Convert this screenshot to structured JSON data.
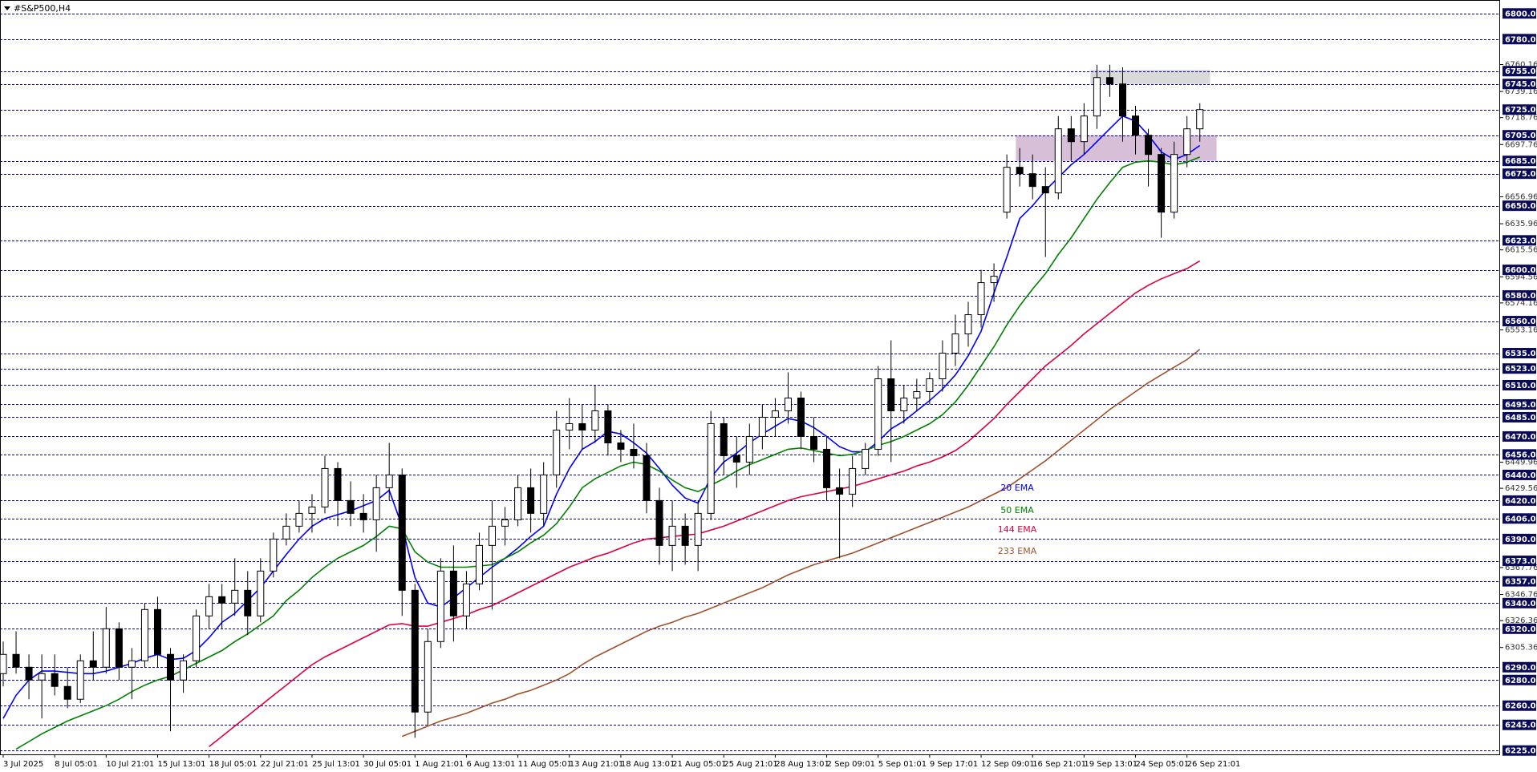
{
  "chart_data": {
    "type": "candlestick",
    "title": "#S&P500,H4",
    "categories": [
      "3 Jul 2025",
      null,
      null,
      null,
      "8 Jul 05:01",
      null,
      null,
      null,
      "10 Jul 21:01",
      null,
      null,
      null,
      "15 Jul 13:01",
      null,
      null,
      null,
      "18 Jul 05:01",
      null,
      null,
      null,
      "22 Jul 21:01",
      null,
      null,
      null,
      "25 Jul 13:01",
      null,
      null,
      null,
      "30 Jul 05:01",
      null,
      null,
      null,
      "1 Aug 21:01",
      null,
      null,
      null,
      "6 Aug 13:01",
      null,
      null,
      null,
      "11 Aug 05:01",
      null,
      null,
      null,
      "13 Aug 21:01",
      null,
      null,
      null,
      "18 Aug 13:01",
      null,
      null,
      null,
      "21 Aug 05:01",
      null,
      null,
      null,
      "25 Aug 21:01",
      null,
      null,
      null,
      "28 Aug 13:01",
      null,
      null,
      null,
      "2 Sep 09:01",
      null,
      null,
      null,
      "5 Sep 01:01",
      null,
      null,
      null,
      "9 Sep 17:01",
      null,
      null,
      null,
      "12 Sep 09:01",
      null,
      null,
      null,
      "16 Sep 21:01",
      null,
      null,
      null,
      "19 Sep 13:01",
      null,
      null,
      null,
      "24 Sep 05:01",
      null,
      null,
      null,
      "26 Sep 21:01",
      null
    ],
    "open": [
      6285,
      6300,
      6290,
      6280,
      6285,
      6275,
      6265,
      6295,
      6290,
      6320,
      6290,
      6295,
      6335,
      6300,
      6280,
      6295,
      6330,
      6345,
      6340,
      6350,
      6330,
      6365,
      6390,
      6400,
      6410,
      6415,
      6445,
      6420,
      6410,
      6405,
      6430,
      6440,
      6350,
      6255,
      6310,
      6365,
      6330,
      6355,
      6385,
      6400,
      6405,
      6430,
      6410,
      6440,
      6475,
      6480,
      6475,
      6490,
      6465,
      6460,
      6455,
      6420,
      6385,
      6400,
      6385,
      6410,
      6480,
      6455,
      6450,
      6470,
      6485,
      6490,
      6500,
      6470,
      6460,
      6430,
      6425,
      6445,
      6460,
      6515,
      6490,
      6500,
      6505,
      6515,
      6535,
      6550,
      6565,
      6590,
      6645,
      6680,
      6675,
      6665,
      6660,
      6710,
      6700,
      6720,
      6750,
      6745,
      6720,
      6705,
      6690,
      6645,
      6690,
      6710
    ],
    "high": [
      6310,
      6318,
      6300,
      6300,
      6300,
      6290,
      6300,
      6318,
      6337,
      6325,
      6305,
      6340,
      6345,
      6305,
      6300,
      6335,
      6355,
      6355,
      6375,
      6365,
      6375,
      6395,
      6410,
      6420,
      6425,
      6455,
      6450,
      6435,
      6425,
      6440,
      6465,
      6445,
      6355,
      6320,
      6375,
      6385,
      6365,
      6395,
      6420,
      6415,
      6440,
      6445,
      6450,
      6490,
      6500,
      6495,
      6510,
      6495,
      6475,
      6480,
      6465,
      6430,
      6420,
      6410,
      6420,
      6490,
      6485,
      6470,
      6480,
      6495,
      6500,
      6520,
      6505,
      6485,
      6470,
      6445,
      6455,
      6465,
      6525,
      6545,
      6510,
      6515,
      6520,
      6545,
      6565,
      6575,
      6600,
      6605,
      6690,
      6695,
      6690,
      6680,
      6720,
      6720,
      6730,
      6760,
      6760,
      6758,
      6728,
      6710,
      6695,
      6700,
      6720,
      6730
    ],
    "low": [
      6275,
      6285,
      6265,
      6250,
      6268,
      6258,
      6262,
      6280,
      6285,
      6280,
      6265,
      6290,
      6290,
      6240,
      6270,
      6290,
      6320,
      6320,
      6330,
      6315,
      6325,
      6360,
      6385,
      6395,
      6395,
      6410,
      6400,
      6400,
      6395,
      6380,
      6420,
      6330,
      6235,
      6245,
      6305,
      6310,
      6320,
      6350,
      6335,
      6385,
      6400,
      6395,
      6400,
      6430,
      6460,
      6460,
      6465,
      6455,
      6450,
      6445,
      6410,
      6370,
      6365,
      6370,
      6365,
      6405,
      6440,
      6430,
      6440,
      6460,
      6470,
      6480,
      6460,
      6450,
      6420,
      6375,
      6415,
      6440,
      6455,
      6450,
      6480,
      6490,
      6495,
      6505,
      6525,
      6540,
      6555,
      6575,
      6640,
      6665,
      6655,
      6610,
      6655,
      6685,
      6690,
      6710,
      6735,
      6700,
      6690,
      6665,
      6625,
      6640,
      6680,
      6700
    ],
    "close": [
      6300,
      6290,
      6280,
      6285,
      6275,
      6265,
      6295,
      6290,
      6320,
      6290,
      6295,
      6335,
      6300,
      6280,
      6295,
      6330,
      6345,
      6340,
      6350,
      6330,
      6365,
      6390,
      6400,
      6410,
      6415,
      6445,
      6420,
      6410,
      6405,
      6430,
      6440,
      6350,
      6255,
      6310,
      6365,
      6330,
      6355,
      6385,
      6400,
      6405,
      6430,
      6410,
      6440,
      6475,
      6480,
      6475,
      6490,
      6465,
      6460,
      6455,
      6420,
      6385,
      6400,
      6385,
      6410,
      6480,
      6455,
      6450,
      6470,
      6485,
      6490,
      6500,
      6470,
      6460,
      6430,
      6425,
      6445,
      6460,
      6515,
      6490,
      6500,
      6505,
      6515,
      6535,
      6550,
      6565,
      6590,
      6595,
      6680,
      6675,
      6665,
      6660,
      6710,
      6700,
      6720,
      6750,
      6745,
      6720,
      6705,
      6690,
      6645,
      6690,
      6710,
      6725
    ],
    "series": [
      {
        "name": "20 EMA",
        "color": "#0000ff",
        "values": [
          6250,
          6268,
          6280,
          6287,
          6287,
          6286,
          6285,
          6285,
          6287,
          6290,
          6293,
          6297,
          6300,
          6296,
          6297,
          6303,
          6313,
          6325,
          6332,
          6342,
          6352,
          6365,
          6378,
          6390,
          6400,
          6406,
          6409,
          6412,
          6416,
          6420,
          6428,
          6400,
          6360,
          6340,
          6337,
          6344,
          6352,
          6360,
          6368,
          6375,
          6383,
          6392,
          6400,
          6425,
          6445,
          6460,
          6466,
          6474,
          6472,
          6465,
          6457,
          6445,
          6432,
          6422,
          6418,
          6438,
          6450,
          6457,
          6465,
          6472,
          6478,
          6484,
          6482,
          6477,
          6470,
          6462,
          6458,
          6458,
          6466,
          6476,
          6482,
          6490,
          6498,
          6507,
          6518,
          6533,
          6552,
          6582,
          6610,
          6640,
          6650,
          6662,
          6672,
          6682,
          6690,
          6700,
          6710,
          6720,
          6716,
          6705,
          6692,
          6686,
          6690,
          6697
        ]
      },
      {
        "name": "50 EMA",
        "color": "#008000",
        "values": [
          null,
          6226,
          6232,
          6238,
          6243,
          6248,
          6252,
          6256,
          6260,
          6265,
          6271,
          6276,
          6280,
          6283,
          6288,
          6293,
          6298,
          6303,
          6310,
          6316,
          6323,
          6330,
          6342,
          6350,
          6360,
          6368,
          6375,
          6380,
          6385,
          6392,
          6400,
          6398,
          6380,
          6372,
          6368,
          6368,
          6368,
          6369,
          6370,
          6375,
          6380,
          6387,
          6393,
          6402,
          6415,
          6430,
          6437,
          6442,
          6447,
          6450,
          6448,
          6443,
          6436,
          6430,
          6427,
          6432,
          6437,
          6443,
          6448,
          6452,
          6456,
          6460,
          6461,
          6459,
          6457,
          6455,
          6456,
          6459,
          6463,
          6466,
          6470,
          6475,
          6480,
          6487,
          6497,
          6510,
          6525,
          6540,
          6557,
          6572,
          6585,
          6597,
          6612,
          6625,
          6640,
          6655,
          6668,
          6680,
          6684,
          6685,
          6684,
          6682,
          6684,
          6688
        ]
      },
      {
        "name": "144 EMA",
        "color": "#e0003c",
        "values": [
          null,
          null,
          null,
          null,
          null,
          null,
          null,
          null,
          null,
          null,
          null,
          null,
          null,
          null,
          null,
          null,
          6228,
          6236,
          6244,
          6252,
          6260,
          6268,
          6276,
          6284,
          6292,
          6298,
          6303,
          6308,
          6313,
          6318,
          6323,
          6324,
          6322,
          6322,
          6325,
          6328,
          6331,
          6335,
          6338,
          6343,
          6348,
          6353,
          6358,
          6363,
          6368,
          6372,
          6376,
          6379,
          6383,
          6387,
          6390,
          6391,
          6392,
          6393,
          6394,
          6397,
          6400,
          6404,
          6408,
          6412,
          6416,
          6420,
          6423,
          6425,
          6427,
          6429,
          6431,
          6434,
          6437,
          6440,
          6443,
          6447,
          6450,
          6454,
          6459,
          6466,
          6475,
          6484,
          6495,
          6505,
          6515,
          6525,
          6533,
          6541,
          6550,
          6558,
          6566,
          6574,
          6582,
          6588,
          6593,
          6597,
          6601,
          6607
        ]
      },
      {
        "name": "233 EMA",
        "color": "#a0522d",
        "values": [
          null,
          null,
          null,
          null,
          null,
          null,
          null,
          null,
          null,
          null,
          null,
          null,
          null,
          null,
          null,
          null,
          null,
          null,
          null,
          null,
          null,
          null,
          null,
          null,
          null,
          null,
          null,
          null,
          null,
          null,
          null,
          6236,
          6240,
          6244,
          6248,
          6251,
          6254,
          6258,
          6262,
          6265,
          6269,
          6272,
          6276,
          6280,
          6285,
          6292,
          6298,
          6303,
          6308,
          6313,
          6318,
          6322,
          6325,
          6329,
          6332,
          6336,
          6340,
          6344,
          6348,
          6352,
          6357,
          6362,
          6366,
          6370,
          6373,
          6376,
          6379,
          6383,
          6387,
          6391,
          6395,
          6399,
          6403,
          6407,
          6411,
          6415,
          6420,
          6425,
          6430,
          6437,
          6444,
          6451,
          6459,
          6467,
          6475,
          6483,
          6491,
          6498,
          6505,
          6512,
          6518,
          6524,
          6530,
          6538
        ]
      }
    ],
    "ylim": [
      6222,
      6808
    ],
    "yticks": [
      6760.16,
      6739.16,
      6718.76,
      6697.76,
      6656.96,
      6635.96,
      6615.56,
      6594.56,
      6574.16,
      6553.16,
      6449.96,
      6429.56,
      6367.76,
      6346.76,
      6326.36,
      6305.36
    ],
    "levels": [
      {
        "value": 6800,
        "label": "6800.00"
      },
      {
        "value": 6780,
        "label": "6780.00"
      },
      {
        "value": 6755,
        "label": "6755.00"
      },
      {
        "value": 6745,
        "label": "6745.00"
      },
      {
        "value": 6725,
        "label": "6725.00"
      },
      {
        "value": 6705,
        "label": "6705.00"
      },
      {
        "value": 6685,
        "label": "6685.00"
      },
      {
        "value": 6675,
        "label": "6675.00"
      },
      {
        "value": 6650,
        "label": "6650.00"
      },
      {
        "value": 6623,
        "label": "6623.00"
      },
      {
        "value": 6600,
        "label": "6600.00"
      },
      {
        "value": 6580,
        "label": "6580.00"
      },
      {
        "value": 6560,
        "label": "6560.00"
      },
      {
        "value": 6535,
        "label": "6535.00"
      },
      {
        "value": 6523,
        "label": "6523.00"
      },
      {
        "value": 6510,
        "label": "6510.00"
      },
      {
        "value": 6495,
        "label": "6495.00"
      },
      {
        "value": 6485,
        "label": "6485.00"
      },
      {
        "value": 6470,
        "label": "6470.00"
      },
      {
        "value": 6456,
        "label": "6456.00"
      },
      {
        "value": 6440,
        "label": "6440.00"
      },
      {
        "value": 6420,
        "label": "6420.00"
      },
      {
        "value": 6406,
        "label": "6406.00"
      },
      {
        "value": 6390,
        "label": "6390.00"
      },
      {
        "value": 6373,
        "label": "6373.00"
      },
      {
        "value": 6357,
        "label": "6357.00"
      },
      {
        "value": 6340,
        "label": "6340.00"
      },
      {
        "value": 6320,
        "label": "6320.00"
      },
      {
        "value": 6290,
        "label": "6290.00"
      },
      {
        "value": 6280,
        "label": "6280.00"
      },
      {
        "value": 6260,
        "label": "6260.00"
      },
      {
        "value": 6245,
        "label": "6245.00"
      },
      {
        "value": 6225,
        "label": "6225.00"
      }
    ],
    "level_color": "#00008b",
    "zones": [
      {
        "ylim": [
          6745,
          6756
        ],
        "xlim": [
          84.5,
          93.8
        ],
        "color": "#d9d9d9"
      },
      {
        "ylim": [
          6685,
          6705
        ],
        "xlim": [
          78.7,
          94.3
        ],
        "color": "#d8bfd8"
      }
    ],
    "up_color": "#ffffff",
    "down_color": "#000000"
  }
}
